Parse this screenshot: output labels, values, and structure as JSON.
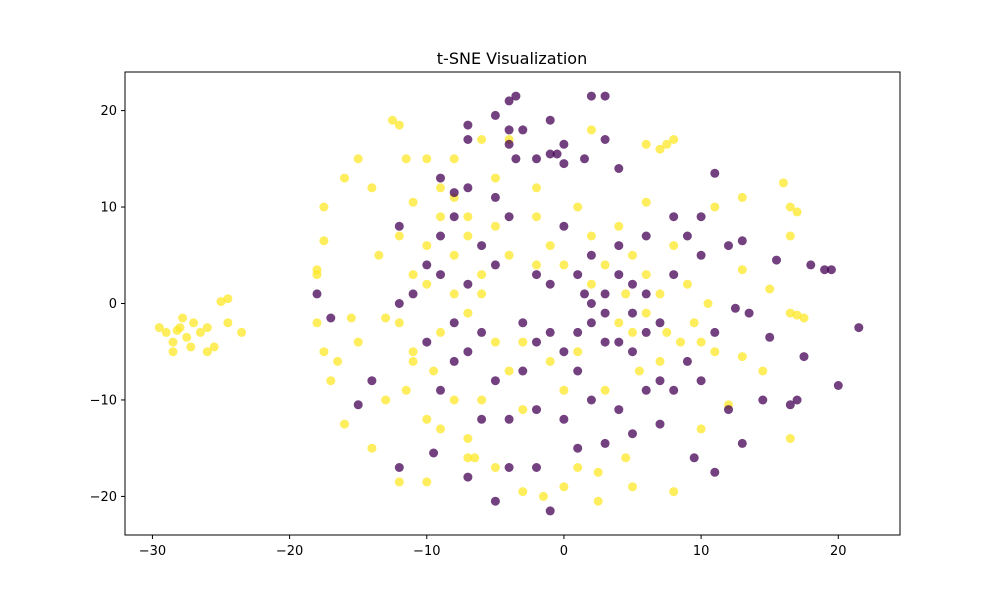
{
  "chart_data": {
    "type": "scatter",
    "title": "t-SNE Visualization",
    "xlabel": "",
    "ylabel": "",
    "xlim": [
      -32,
      24.5
    ],
    "ylim": [
      -24,
      24
    ],
    "xticks": [
      -30,
      -20,
      -10,
      0,
      10,
      20
    ],
    "yticks": [
      -20,
      -10,
      0,
      10,
      20
    ],
    "grid": false,
    "marker_alpha": 0.75,
    "colors": {
      "class_a": "#fde725",
      "class_b": "#440154"
    },
    "series": [
      {
        "color_key": "class_a",
        "points": [
          [
            -28,
            -2.5
          ],
          [
            -27.5,
            -3.5
          ],
          [
            -27,
            -2
          ],
          [
            -28.5,
            -4
          ],
          [
            -26.5,
            -3
          ],
          [
            -27.8,
            -1.5
          ],
          [
            -29,
            -3
          ],
          [
            -28.2,
            -2.8
          ],
          [
            -27.2,
            -4.5
          ],
          [
            -26,
            -2.5
          ],
          [
            -25.5,
            -4.5
          ],
          [
            -29.5,
            -2.5
          ],
          [
            -24.5,
            -2
          ],
          [
            -23.5,
            -3
          ],
          [
            -25,
            0.2
          ],
          [
            -24.5,
            0.5
          ],
          [
            -26,
            -5
          ],
          [
            -28.5,
            -5
          ],
          [
            -18,
            3
          ],
          [
            -17.5,
            10
          ],
          [
            -17.5,
            6.5
          ],
          [
            -16,
            13
          ],
          [
            -18,
            -2
          ],
          [
            -17.5,
            -5
          ],
          [
            -17,
            -8
          ],
          [
            -16,
            -12.5
          ],
          [
            -15,
            15
          ],
          [
            -15,
            -4
          ],
          [
            -14,
            -15
          ],
          [
            -14,
            12
          ],
          [
            -13.5,
            5
          ],
          [
            -13,
            -10
          ],
          [
            -12.5,
            19
          ],
          [
            -12,
            18.5
          ],
          [
            -11.5,
            15
          ],
          [
            -11,
            10.5
          ],
          [
            -10,
            -18.5
          ],
          [
            -10,
            15
          ],
          [
            -9,
            12
          ],
          [
            -9,
            -13
          ],
          [
            -8,
            11
          ],
          [
            -8,
            15
          ],
          [
            -7,
            9
          ],
          [
            -7,
            -14
          ],
          [
            -7,
            -16
          ],
          [
            -6,
            17
          ],
          [
            -5,
            13
          ],
          [
            -5,
            -17
          ],
          [
            -4,
            17
          ],
          [
            -3,
            -19.5
          ],
          [
            -2,
            12
          ],
          [
            0,
            -19
          ],
          [
            1,
            -17
          ],
          [
            2,
            18
          ],
          [
            2.5,
            -17.5
          ],
          [
            4.5,
            -16
          ],
          [
            5,
            -19
          ],
          [
            6,
            16.5
          ],
          [
            7,
            16
          ],
          [
            7.5,
            16.5
          ],
          [
            8,
            17
          ],
          [
            8,
            -19.5
          ],
          [
            6,
            10.5
          ],
          [
            10,
            -13
          ],
          [
            11,
            10
          ],
          [
            12,
            -10.5
          ],
          [
            13,
            11
          ],
          [
            13,
            3.5
          ],
          [
            13,
            -5.5
          ],
          [
            14.5,
            -7
          ],
          [
            15,
            1.5
          ],
          [
            16,
            12.5
          ],
          [
            16.5,
            10
          ],
          [
            17,
            9.5
          ],
          [
            16.5,
            7
          ],
          [
            16.5,
            -1
          ],
          [
            17,
            -1.2
          ],
          [
            17.5,
            -1.5
          ],
          [
            16.5,
            -14
          ],
          [
            -12,
            -18.5
          ],
          [
            -6.5,
            -16
          ],
          [
            -1.5,
            -20
          ],
          [
            2.5,
            -20.5
          ],
          [
            -18,
            3.5
          ],
          [
            -16.5,
            -6
          ],
          [
            -15.5,
            -1.5
          ],
          [
            -13,
            -1.5
          ],
          [
            -12,
            7
          ],
          [
            -11,
            3
          ],
          [
            -11,
            -5
          ],
          [
            -10,
            2
          ],
          [
            -9.5,
            -7
          ],
          [
            -8,
            5
          ],
          [
            -8,
            -10
          ],
          [
            -7,
            7
          ],
          [
            -6,
            -10
          ],
          [
            -5,
            8
          ],
          [
            -4,
            5
          ],
          [
            -3,
            -11
          ],
          [
            -2,
            9
          ],
          [
            -1,
            6
          ],
          [
            0,
            -9
          ],
          [
            1,
            10
          ],
          [
            2,
            7
          ],
          [
            3,
            -9
          ],
          [
            4,
            8
          ],
          [
            5,
            5
          ],
          [
            5.5,
            -7
          ],
          [
            6,
            3
          ],
          [
            7,
            -6
          ],
          [
            8,
            6
          ],
          [
            8.5,
            -4
          ],
          [
            9,
            2
          ],
          [
            9.5,
            -2
          ],
          [
            10,
            -4
          ],
          [
            10.5,
            0
          ],
          [
            11,
            -5
          ],
          [
            -12,
            -2
          ],
          [
            -11.5,
            -9
          ],
          [
            -10,
            -12
          ],
          [
            -9,
            9
          ],
          [
            -6,
            3
          ],
          [
            -5,
            -4
          ],
          [
            -4,
            -7
          ],
          [
            -3,
            -4
          ],
          [
            -2,
            4
          ],
          [
            -1,
            -6
          ],
          [
            0,
            4
          ],
          [
            1,
            -5
          ],
          [
            2,
            2
          ],
          [
            3,
            4
          ],
          [
            4,
            -2
          ],
          [
            4.5,
            1
          ],
          [
            5,
            -3
          ],
          [
            6,
            -1
          ],
          [
            7,
            1
          ],
          [
            7.5,
            -3
          ],
          [
            -9,
            -3
          ],
          [
            -7,
            -1
          ],
          [
            -6,
            1
          ],
          [
            -8,
            1
          ],
          [
            -10,
            6
          ],
          [
            -11,
            -6
          ]
        ]
      },
      {
        "color_key": "class_b",
        "points": [
          [
            -3.5,
            21.5
          ],
          [
            -4,
            21
          ],
          [
            2,
            21.5
          ],
          [
            3,
            21.5
          ],
          [
            -4,
            18
          ],
          [
            -3,
            18
          ],
          [
            -1,
            19
          ],
          [
            -1,
            15.5
          ],
          [
            -0.5,
            15.5
          ],
          [
            0,
            16.5
          ],
          [
            0,
            14.5
          ],
          [
            1.5,
            15
          ],
          [
            -5,
            19.5
          ],
          [
            -7,
            18.5
          ],
          [
            -7,
            17
          ],
          [
            -4,
            16.5
          ],
          [
            -3.5,
            15
          ],
          [
            -2,
            15
          ],
          [
            3,
            17
          ],
          [
            4,
            14
          ],
          [
            -9,
            13
          ],
          [
            -8,
            11.5
          ],
          [
            -7,
            12
          ],
          [
            -5,
            11
          ],
          [
            -12,
            -17
          ],
          [
            -9.5,
            -15.5
          ],
          [
            -7,
            -18
          ],
          [
            -5,
            -20.5
          ],
          [
            -4,
            -17
          ],
          [
            -2,
            -17
          ],
          [
            -1,
            -21.5
          ],
          [
            1,
            -15
          ],
          [
            3,
            -14.5
          ],
          [
            5,
            -13.5
          ],
          [
            7,
            -12.5
          ],
          [
            9.5,
            -16
          ],
          [
            11,
            -17.5
          ],
          [
            12,
            -11
          ],
          [
            13,
            -14.5
          ],
          [
            14.5,
            -10
          ],
          [
            16.5,
            -10.5
          ],
          [
            17,
            -10
          ],
          [
            17.5,
            -5.5
          ],
          [
            20,
            -8.5
          ],
          [
            21.5,
            -2.5
          ],
          [
            15,
            -3.5
          ],
          [
            13.5,
            -1
          ],
          [
            12.5,
            -0.5
          ],
          [
            13,
            6.5
          ],
          [
            15.5,
            4.5
          ],
          [
            18,
            4
          ],
          [
            19,
            3.5
          ],
          [
            19.5,
            3.5
          ],
          [
            12,
            6
          ],
          [
            10,
            9
          ],
          [
            11,
            13.5
          ],
          [
            8,
            9
          ],
          [
            -17,
            -1.5
          ],
          [
            -18,
            1
          ],
          [
            -14,
            -8
          ],
          [
            -15,
            -10.5
          ],
          [
            -12,
            8
          ],
          [
            -10,
            4
          ],
          [
            -9,
            7
          ],
          [
            -8,
            -2
          ],
          [
            -7,
            -5
          ],
          [
            -6,
            6
          ],
          [
            -5,
            -8
          ],
          [
            -4,
            9
          ],
          [
            -3,
            -7
          ],
          [
            -2,
            3
          ],
          [
            -1,
            -3
          ],
          [
            0,
            8
          ],
          [
            1,
            -7
          ],
          [
            2,
            5
          ],
          [
            3,
            -4
          ],
          [
            4,
            6
          ],
          [
            5,
            -5
          ],
          [
            6,
            7
          ],
          [
            7,
            -8
          ],
          [
            8,
            3
          ],
          [
            9,
            -6
          ],
          [
            10,
            5
          ],
          [
            11,
            -3
          ],
          [
            -11,
            1
          ],
          [
            -10,
            -4
          ],
          [
            -9,
            -9
          ],
          [
            -8,
            9
          ],
          [
            -6,
            -12
          ],
          [
            -4,
            -12
          ],
          [
            -2,
            -11
          ],
          [
            0,
            -12
          ],
          [
            2,
            -10
          ],
          [
            4,
            -11
          ],
          [
            6,
            -9
          ],
          [
            8,
            -9
          ],
          [
            9,
            7
          ],
          [
            10,
            -8
          ],
          [
            1,
            3
          ],
          [
            2,
            -2
          ],
          [
            3,
            1
          ],
          [
            4,
            3
          ],
          [
            5,
            -1
          ],
          [
            6,
            1
          ],
          [
            7,
            -2
          ],
          [
            3,
            -1
          ],
          [
            2,
            0
          ],
          [
            4,
            -4
          ],
          [
            5,
            2
          ],
          [
            6,
            -3
          ],
          [
            -3,
            -2
          ],
          [
            -2,
            -4
          ],
          [
            -1,
            2
          ],
          [
            0,
            -5
          ],
          [
            1,
            -3
          ],
          [
            1.5,
            1
          ],
          [
            -5,
            4
          ],
          [
            -6,
            -3
          ],
          [
            -7,
            2
          ],
          [
            -8,
            -6
          ],
          [
            -9,
            3
          ],
          [
            -12,
            0
          ]
        ]
      }
    ]
  }
}
